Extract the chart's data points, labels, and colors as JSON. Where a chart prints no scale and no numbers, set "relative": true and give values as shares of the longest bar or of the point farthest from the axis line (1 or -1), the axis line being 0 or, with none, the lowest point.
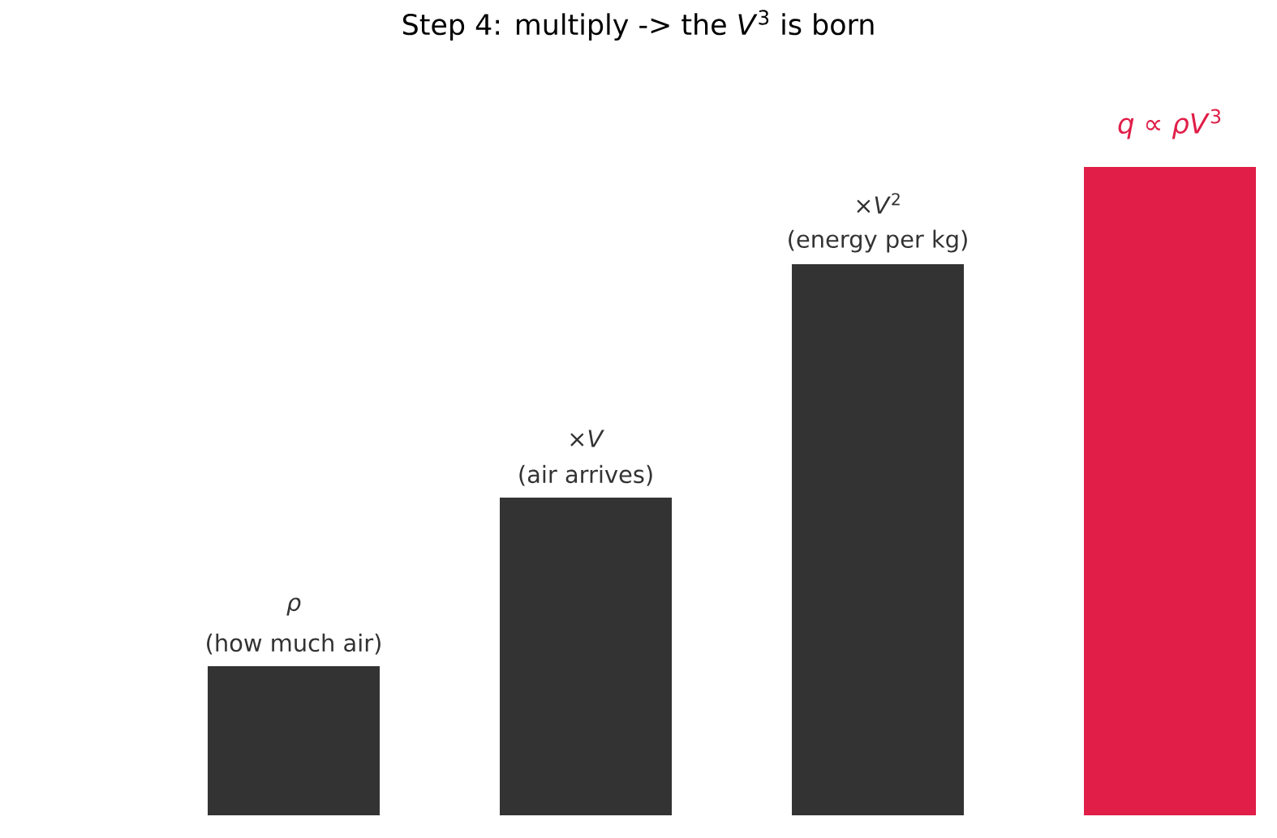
{
  "chart_data": {
    "type": "bar",
    "relative": true,
    "title": "Step 4: multiply -> the *V*$^{3}$ is born",
    "categories": [
      null,
      null,
      null,
      null
    ],
    "values": [
      0.23,
      0.49,
      0.85,
      1
    ],
    "colors": [
      "#333333",
      "#333333",
      "#333333",
      "#e01e48"
    ],
    "annotations": [
      {
        "text": "*ρ*",
        "y": 0.23
      },
      {
        "text": "(how much air)",
        "y": 0.23
      },
      {
        "text": "×*V*",
        "y": 0.49
      },
      {
        "text": "(air arrives)",
        "y": 0.49
      },
      {
        "text": "×*V*$^{2}$",
        "y": 0.85
      },
      {
        "text": "(energy per kg)",
        "y": 0.85
      },
      {
        "text": "*q* ∝ *ρV*$^{3}$",
        "y": 1
      }
    ]
  }
}
